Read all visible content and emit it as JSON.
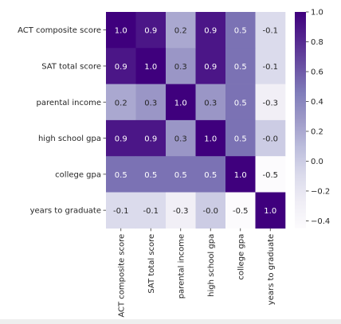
{
  "chart_data": {
    "type": "heatmap",
    "row_labels": [
      "ACT composite score",
      "SAT total score",
      "parental income",
      "high school gpa",
      "college gpa",
      "years to graduate"
    ],
    "col_labels": [
      "ACT composite score",
      "SAT total score",
      "parental income",
      "high school gpa",
      "college gpa",
      "years to graduate"
    ],
    "values": [
      [
        1.0,
        0.9,
        0.2,
        0.9,
        0.5,
        -0.1
      ],
      [
        0.9,
        1.0,
        0.3,
        0.9,
        0.5,
        -0.1
      ],
      [
        0.2,
        0.3,
        1.0,
        0.3,
        0.5,
        -0.3
      ],
      [
        0.9,
        0.9,
        0.3,
        1.0,
        0.5,
        -0.0
      ],
      [
        0.5,
        0.5,
        0.5,
        0.5,
        1.0,
        -0.5
      ],
      [
        -0.1,
        -0.1,
        -0.3,
        -0.0,
        -0.5,
        1.0
      ]
    ],
    "cell_labels": [
      [
        "1.0",
        "0.9",
        "0.2",
        "0.9",
        "0.5",
        "-0.1"
      ],
      [
        "0.9",
        "1.0",
        "0.3",
        "0.9",
        "0.5",
        "-0.1"
      ],
      [
        "0.2",
        "0.3",
        "1.0",
        "0.3",
        "0.5",
        "-0.3"
      ],
      [
        "0.9",
        "0.9",
        "0.3",
        "1.0",
        "0.5",
        "-0.0"
      ],
      [
        "0.5",
        "0.5",
        "0.5",
        "0.5",
        "1.0",
        "-0.5"
      ],
      [
        "-0.1",
        "-0.1",
        "-0.3",
        "-0.0",
        "-0.5",
        "1.0"
      ]
    ],
    "colormap": "Purples",
    "vmin": -0.45,
    "vmax": 1.0,
    "colorbar_ticks": [
      1.0,
      0.8,
      0.6,
      0.4,
      0.2,
      0.0,
      -0.2,
      -0.4
    ],
    "colorbar_tick_labels": [
      "1.0",
      "0.8",
      "0.6",
      "0.4",
      "0.2",
      "0.0",
      "−0.2",
      "−0.4"
    ],
    "colormap_stops": [
      "#fcfbfd",
      "#efedf5",
      "#dadaeb",
      "#bcbddc",
      "#9e9ac8",
      "#807dba",
      "#6a51a3",
      "#54278f",
      "#3f007d"
    ]
  }
}
